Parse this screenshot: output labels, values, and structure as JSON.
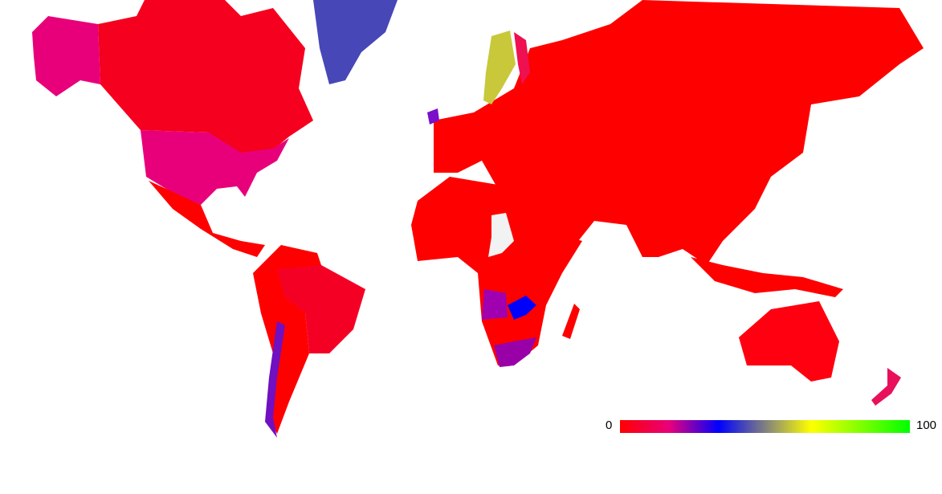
{
  "legend": {
    "min_label": "0",
    "max_label": "100",
    "stops": [
      {
        "offset": 0,
        "color": "#ff0000"
      },
      {
        "offset": 17,
        "color": "#e8007a"
      },
      {
        "offset": 34,
        "color": "#0000ff"
      },
      {
        "offset": 50,
        "color": "#808080"
      },
      {
        "offset": 66,
        "color": "#ffff00"
      },
      {
        "offset": 100,
        "color": "#00ff00"
      }
    ]
  },
  "regions": {
    "north-america-base": {
      "value": 2,
      "color": "#f5001e"
    },
    "alaska": {
      "value": 16,
      "color": "#e8007a"
    },
    "usa": {
      "value": 16,
      "color": "#e8007a"
    },
    "greenland": {
      "value": 42,
      "color": "#4747b8"
    },
    "latin-america": {
      "value": 0,
      "color": "#ff0000"
    },
    "brazil": {
      "value": 3,
      "color": "#f50025"
    },
    "chile": {
      "value": 28,
      "color": "#7010c0"
    },
    "europe-asia": {
      "value": 0,
      "color": "#ff0000"
    },
    "sweden": {
      "value": 60,
      "color": "#c8c83a"
    },
    "finland": {
      "value": 8,
      "color": "#ee1050"
    },
    "ireland": {
      "value": 30,
      "color": "#7a10c8"
    },
    "africa": {
      "value": 0,
      "color": "#ff0000"
    },
    "chad": {
      "value": null,
      "color": "#f2f2f2"
    },
    "angola": {
      "value": 24,
      "color": "#a000b0"
    },
    "zambia": {
      "value": 34,
      "color": "#0000ff"
    },
    "south-africa": {
      "value": 25,
      "color": "#9a00a8"
    },
    "australia": {
      "value": 1,
      "color": "#ff0010"
    },
    "new-zealand": {
      "value": 10,
      "color": "#e8105a"
    }
  }
}
